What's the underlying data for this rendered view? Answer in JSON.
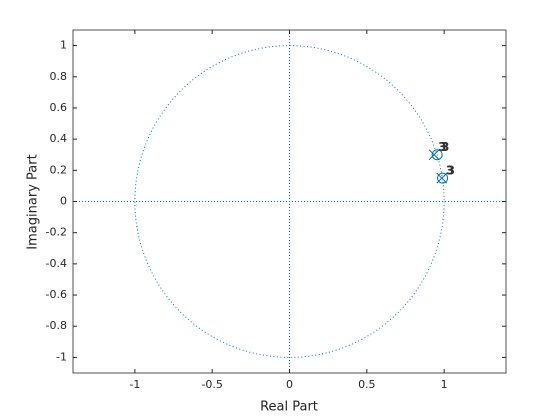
{
  "chart_data": {
    "type": "pole-zero",
    "xlabel": "Real Part",
    "ylabel": "Imaginary Part",
    "xlim": [
      -1.4,
      1.4
    ],
    "ylim": [
      -1.1,
      1.1
    ],
    "xticks": [
      -1,
      -0.5,
      0,
      0.5,
      1
    ],
    "yticks": [
      -1,
      -0.8,
      -0.6,
      -0.4,
      -0.2,
      0,
      0.2,
      0.4,
      0.6,
      0.8,
      1
    ],
    "unit_circle": true,
    "series": [
      {
        "marker": "o",
        "color": "#0072bd",
        "x": [
          0.955,
          0.99
        ],
        "values": [
          0.3,
          0.15
        ],
        "labels": [
          3,
          3
        ]
      },
      {
        "marker": "x",
        "color": "#0072bd",
        "x": [
          0.935,
          0.985
        ],
        "values": [
          0.3,
          0.15
        ],
        "labels": [
          3,
          3
        ]
      }
    ]
  }
}
